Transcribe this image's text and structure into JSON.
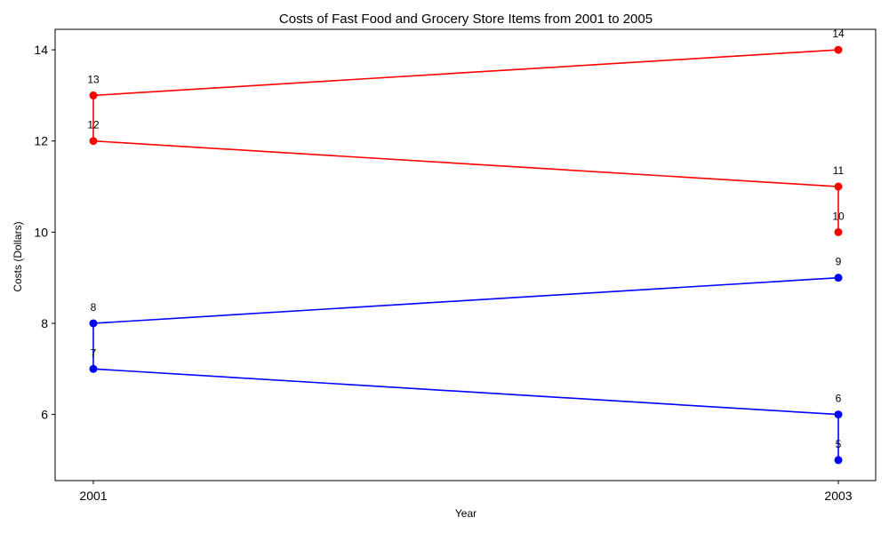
{
  "chart_data": {
    "type": "line",
    "title": "Costs of Fast Food and Grocery Store Items from 2001 to 2005",
    "xlabel": "Year",
    "ylabel": "Costs (Dollars)",
    "x_ticks": [
      "2001",
      "2003"
    ],
    "y_ticks": [
      6,
      8,
      10,
      12,
      14
    ],
    "ylim": [
      4.55,
      14.45
    ],
    "grid": false,
    "legend": "none",
    "series": [
      {
        "color": "#ff0000",
        "points": [
          {
            "x": "2003",
            "y": 10
          },
          {
            "x": "2003",
            "y": 11
          },
          {
            "x": "2001",
            "y": 12
          },
          {
            "x": "2001",
            "y": 13
          },
          {
            "x": "2003",
            "y": 14
          }
        ]
      },
      {
        "color": "#0000ff",
        "points": [
          {
            "x": "2003",
            "y": 5
          },
          {
            "x": "2003",
            "y": 6
          },
          {
            "x": "2001",
            "y": 7
          },
          {
            "x": "2001",
            "y": 8
          },
          {
            "x": "2003",
            "y": 9
          }
        ]
      }
    ]
  }
}
